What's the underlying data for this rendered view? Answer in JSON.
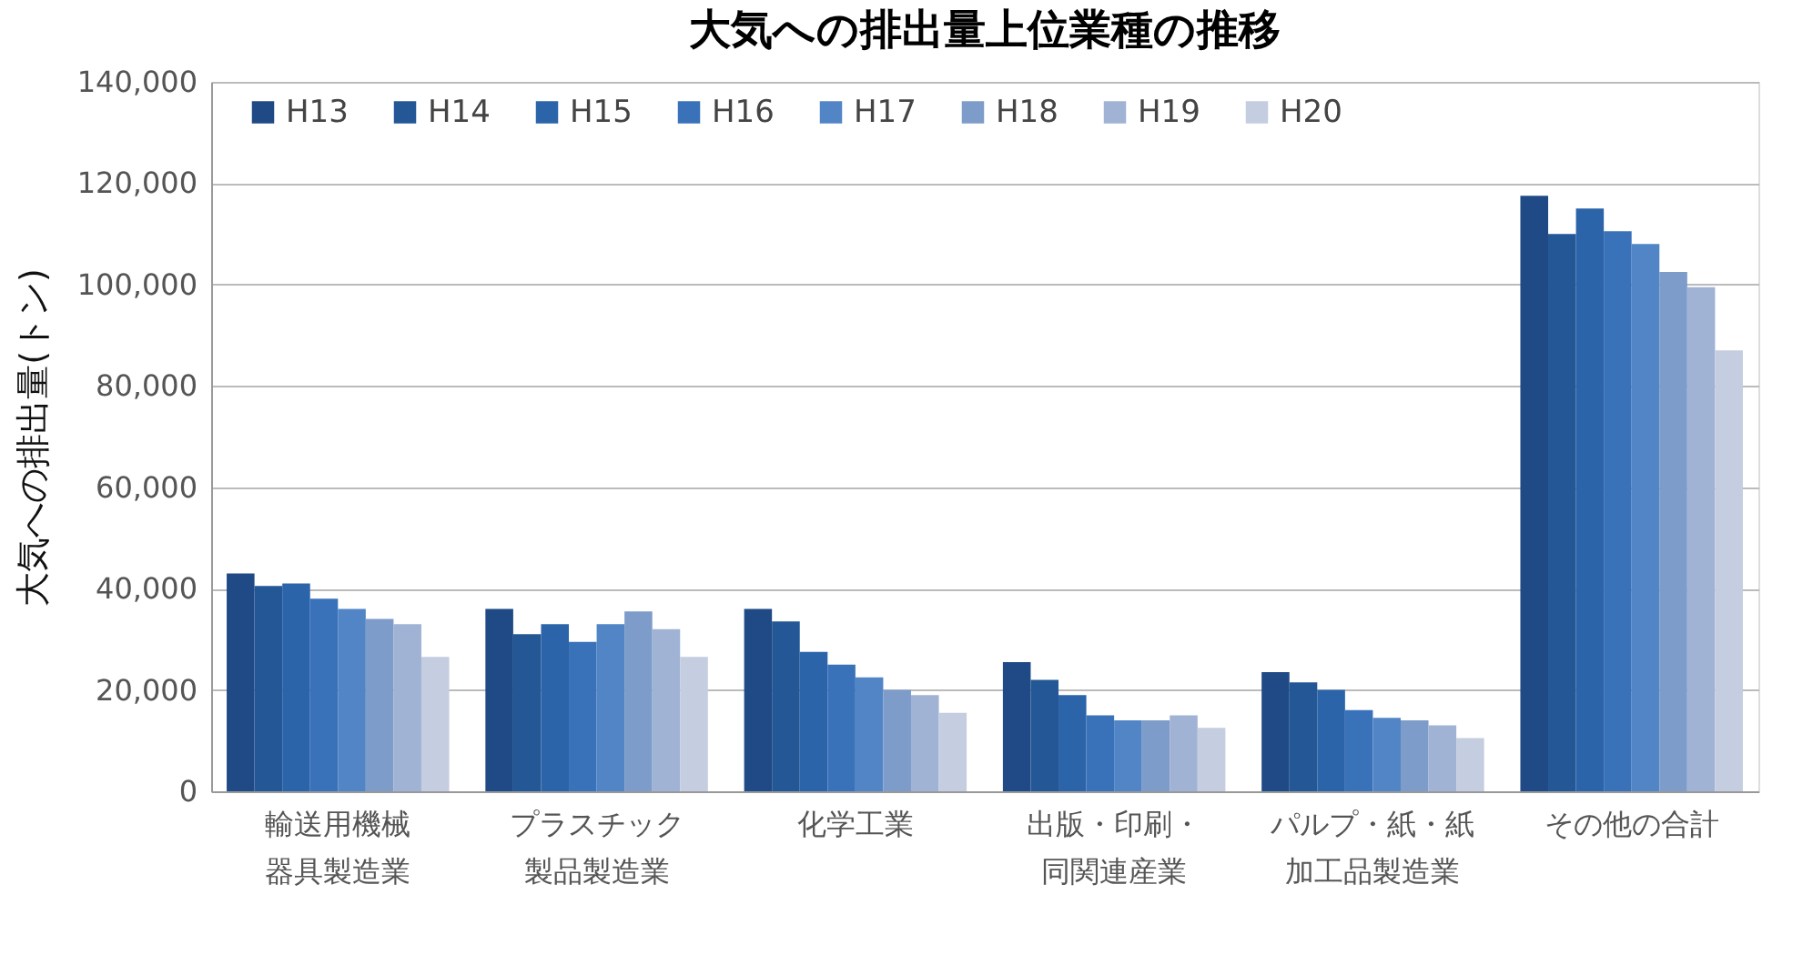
{
  "chart_data": {
    "type": "bar",
    "title": "大気への排出量上位業種の推移",
    "ylabel": "大気への排出量(トン)",
    "categories": [
      "輸送用機械器具製造業",
      "プラスチック製品製造業",
      "化学工業",
      "出版・印刷・同関連産業",
      "パルプ・紙・紙加工品製造業",
      "その他の合計"
    ],
    "series": [
      {
        "name": "H13",
        "color": "#1f4a85",
        "values": [
          43000,
          36000,
          36000,
          25500,
          23500,
          117500
        ]
      },
      {
        "name": "H14",
        "color": "#245796",
        "values": [
          40500,
          31000,
          33500,
          22000,
          21500,
          110000
        ]
      },
      {
        "name": "H15",
        "color": "#2c64aa",
        "values": [
          41000,
          33000,
          27500,
          19000,
          20000,
          115000
        ]
      },
      {
        "name": "H16",
        "color": "#3a72ba",
        "values": [
          38000,
          29500,
          25000,
          15000,
          16000,
          110500
        ]
      },
      {
        "name": "H17",
        "color": "#5185c6",
        "values": [
          36000,
          33000,
          22500,
          14000,
          14500,
          108000
        ]
      },
      {
        "name": "H18",
        "color": "#7d9cc9",
        "values": [
          34000,
          35500,
          20000,
          14000,
          14000,
          102500
        ]
      },
      {
        "name": "H19",
        "color": "#a0b3d5",
        "values": [
          33000,
          32000,
          19000,
          15000,
          13000,
          99500
        ]
      },
      {
        "name": "H20",
        "color": "#c5cde0",
        "values": [
          26500,
          26500,
          15500,
          12500,
          10500,
          87000
        ]
      }
    ],
    "ylim": [
      0,
      140000
    ],
    "yticks": [
      0,
      {
        "value": 20000,
        "label": "20,000"
      },
      {
        "value": 40000,
        "label": "40,000"
      },
      {
        "value": 60000,
        "label": "60,000"
      },
      {
        "value": 80000,
        "label": "80,000"
      },
      {
        "value": 100000,
        "label": "100,000"
      },
      {
        "value": 120000,
        "label": "120,000"
      },
      {
        "value": 140000,
        "label": "140,000"
      }
    ],
    "grid": "y",
    "legend": "top"
  }
}
